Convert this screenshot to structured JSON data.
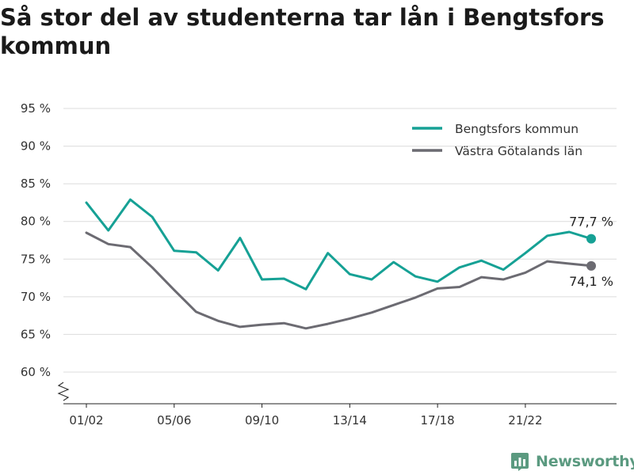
{
  "title": "Så stor del av studenterna tar lån i Bengtsfors kommun",
  "brand": {
    "name": "Newsworthy",
    "icon": "bar-chart-logo-icon",
    "color": "#5b9a80"
  },
  "chart_data": {
    "type": "line",
    "title": "Så stor del av studenterna tar lån i Bengtsfors kommun",
    "xlabel": "",
    "ylabel": "",
    "ylim": [
      60,
      95
    ],
    "y_ticks": [
      60,
      65,
      70,
      75,
      80,
      85,
      90,
      95
    ],
    "y_tick_labels": [
      "60 %",
      "65 %",
      "70 %",
      "75 %",
      "80 %",
      "85 %",
      "90 %",
      "95 %"
    ],
    "y_axis_break": true,
    "grid": "horizontal",
    "legend_position": "top-right",
    "x_tick_labels": [
      "01/02",
      "05/06",
      "09/10",
      "13/14",
      "17/18",
      "21/22"
    ],
    "x_tick_index": [
      0,
      4,
      8,
      12,
      16,
      20
    ],
    "series": [
      {
        "name": "Bengtsfors kommun",
        "color": "#16a195",
        "values": [
          82.5,
          78.8,
          82.9,
          80.6,
          76.1,
          75.9,
          73.5,
          77.8,
          72.3,
          72.4,
          71.0,
          75.8,
          73.0,
          72.3,
          74.6,
          72.7,
          72.0,
          73.9,
          74.8,
          73.6,
          75.8,
          78.1,
          78.6,
          77.7
        ],
        "end_label": "77,7 %"
      },
      {
        "name": "Västra Götalands län",
        "color": "#6c6b72",
        "values": [
          78.5,
          77.0,
          76.6,
          73.9,
          70.9,
          68.0,
          66.8,
          66.0,
          66.3,
          66.5,
          65.8,
          66.4,
          67.1,
          67.9,
          68.9,
          69.9,
          71.1,
          71.3,
          72.6,
          72.3,
          73.2,
          74.7,
          74.4,
          74.1
        ],
        "end_label": "74,1 %"
      }
    ]
  }
}
